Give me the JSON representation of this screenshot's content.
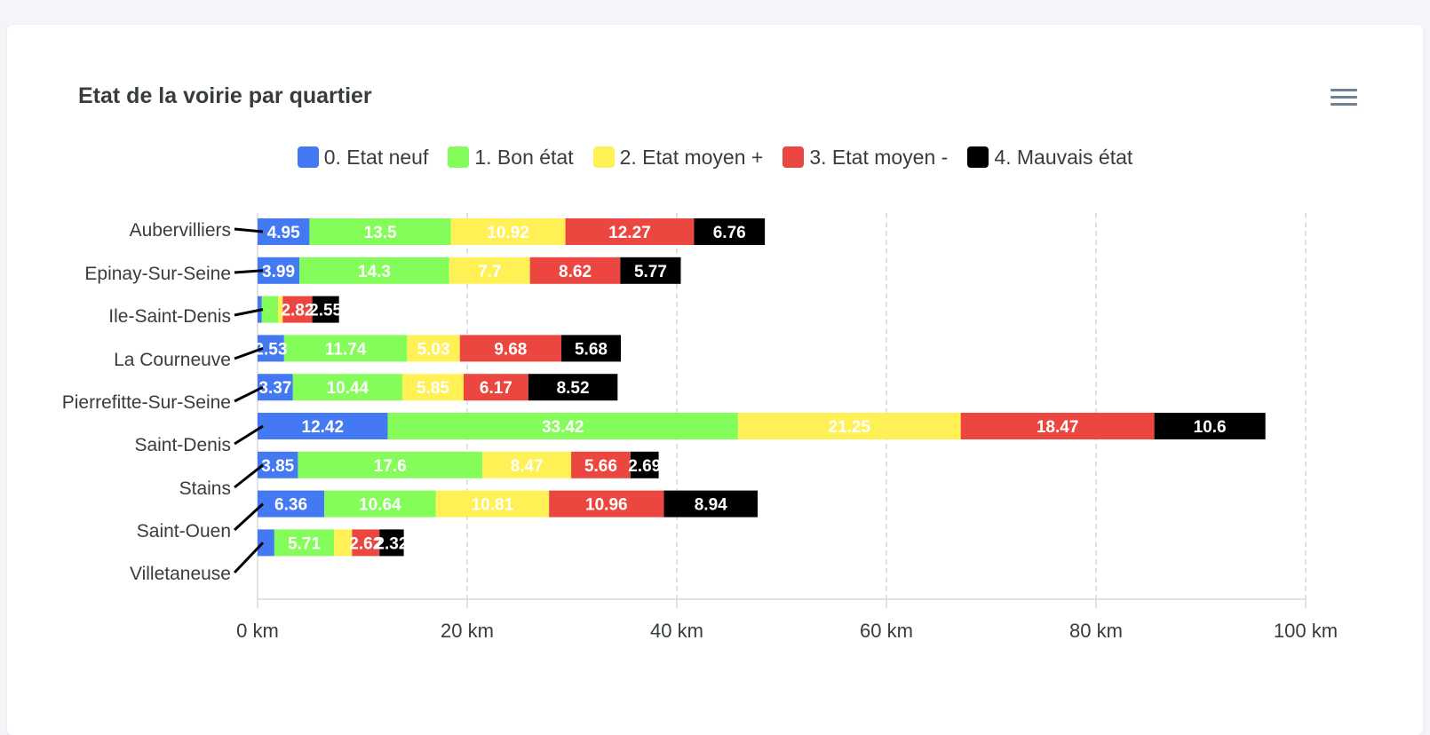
{
  "page": {
    "title": "Etat de la voirie par quartier",
    "menu_icon": "hamburger-menu-icon"
  },
  "chart_data": {
    "type": "bar",
    "orientation": "horizontal",
    "stacked": true,
    "title": "Etat de la voirie par quartier",
    "categories": [
      "Aubervilliers",
      "Epinay-Sur-Seine",
      "Ile-Saint-Denis",
      "La Courneuve",
      "Pierrefitte-Sur-Seine",
      "Saint-Denis",
      "Stains",
      "Saint-Ouen",
      "Villetaneuse"
    ],
    "series": [
      {
        "name": "0. Etat neuf",
        "color": "#4479f4",
        "values": [
          4.95,
          3.99,
          0.4,
          2.53,
          3.37,
          12.42,
          3.85,
          6.36,
          1.6
        ]
      },
      {
        "name": "1. Bon état",
        "color": "#84fd5b",
        "values": [
          13.5,
          14.3,
          1.55,
          11.74,
          10.44,
          33.42,
          17.6,
          10.64,
          5.71
        ]
      },
      {
        "name": "2. Etat moyen +",
        "color": "#fff056",
        "values": [
          10.92,
          7.7,
          0.45,
          5.03,
          5.85,
          21.25,
          8.47,
          10.81,
          1.7
        ]
      },
      {
        "name": "3. Etat moyen -",
        "color": "#eb4740",
        "values": [
          12.27,
          8.62,
          2.82,
          9.68,
          6.17,
          18.47,
          5.66,
          10.96,
          2.62
        ]
      },
      {
        "name": "4. Mauvais état",
        "color": "#000000",
        "values": [
          6.76,
          5.77,
          2.55,
          5.68,
          8.52,
          10.6,
          2.69,
          8.94,
          2.32
        ]
      }
    ],
    "x_ticks": [
      "0 km",
      "20 km",
      "40 km",
      "60 km",
      "80 km",
      "100 km"
    ],
    "xlim": [
      0,
      100
    ],
    "grid": true,
    "legend_position": "top"
  }
}
